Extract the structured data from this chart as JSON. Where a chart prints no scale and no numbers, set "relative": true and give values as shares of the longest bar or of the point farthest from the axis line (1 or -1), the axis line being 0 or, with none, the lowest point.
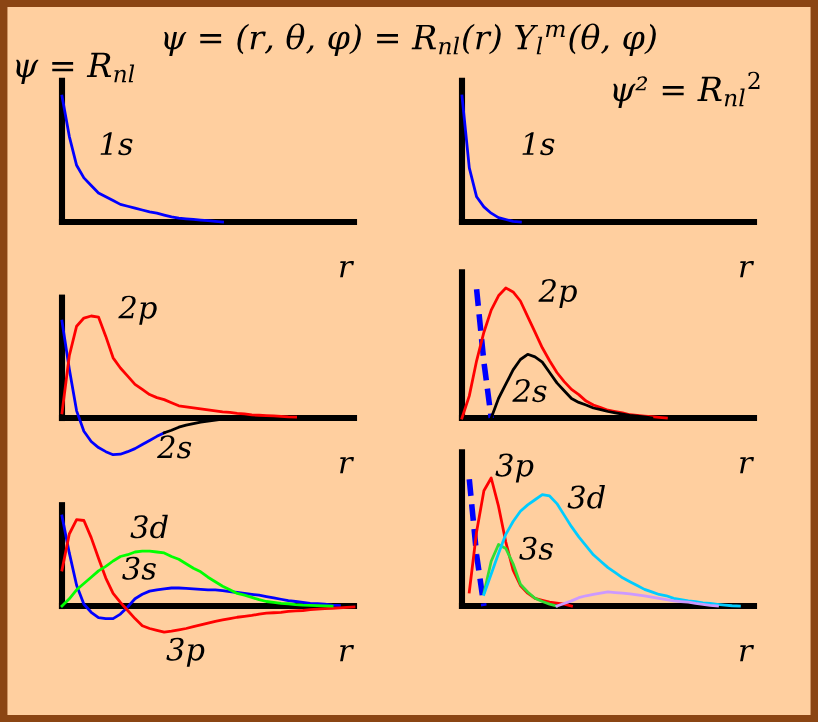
{
  "chart_data": [
    {
      "type": "line",
      "relative": true,
      "title": "ψ = (r, θ, φ) = R$_{nl}$(r) Y$_{l}$$^{m}$(θ, φ)",
      "ylabel": "ψ = R$_{nl}$",
      "xlabel": "r",
      "tick_labels": false,
      "categories": [
        null,
        null,
        null,
        null,
        null,
        null,
        null,
        null,
        null,
        null,
        null,
        null,
        null,
        null,
        null,
        null,
        null,
        null,
        null,
        null,
        null,
        null,
        null,
        null,
        null,
        null,
        null,
        null,
        null,
        null,
        null,
        null,
        null,
        null,
        null,
        null,
        null,
        null,
        null,
        null,
        null
      ],
      "series": [
        {
          "color": "#0000ff",
          "values": [
            1.0,
            0.68,
            0.45,
            0.35,
            0.29,
            0.23,
            0.2,
            0.17,
            0.14,
            0.125,
            0.11,
            0.095,
            0.08,
            0.07,
            0.055,
            0.04,
            0.03,
            0.025,
            0.02,
            0.015,
            0.01,
            0.005,
            0,
            null,
            null,
            null,
            null,
            null,
            null,
            null,
            null,
            null,
            null,
            null,
            null,
            null,
            null,
            null,
            null,
            null,
            null
          ]
        }
      ],
      "annotations": [
        "1s"
      ]
    },
    {
      "type": "line",
      "relative": true,
      "ylabel": "ψ² = R$_{nl}$$^{2}$",
      "xlabel": "r",
      "tick_labels": false,
      "categories": [
        null,
        null,
        null,
        null,
        null,
        null,
        null,
        null,
        null,
        null,
        null,
        null,
        null,
        null,
        null,
        null,
        null,
        null,
        null,
        null,
        null,
        null,
        null,
        null,
        null,
        null,
        null,
        null,
        null,
        null,
        null,
        null,
        null,
        null,
        null,
        null,
        null,
        null,
        null,
        null,
        null
      ],
      "series": [
        {
          "color": "#0000ff",
          "values": [
            1.0,
            0.43,
            0.2,
            0.12,
            0.07,
            0.035,
            0.02,
            0.005,
            0,
            null,
            null,
            null,
            null,
            null,
            null,
            null,
            null,
            null,
            null,
            null,
            null,
            null,
            null,
            null,
            null,
            null,
            null,
            null,
            null,
            null,
            null,
            null,
            null,
            null,
            null,
            null,
            null,
            null,
            null,
            null,
            null
          ]
        }
      ],
      "annotations": [
        "1s"
      ]
    },
    {
      "type": "line",
      "relative": true,
      "xlabel": "r",
      "tick_labels": false,
      "categories": [
        null,
        null,
        null,
        null,
        null,
        null,
        null,
        null,
        null,
        null,
        null,
        null,
        null,
        null,
        null,
        null,
        null,
        null,
        null,
        null,
        null,
        null,
        null,
        null,
        null,
        null,
        null,
        null,
        null,
        null,
        null,
        null,
        null,
        null,
        null,
        null,
        null,
        null,
        null,
        null,
        null
      ],
      "series": [
        {
          "color": "#0000ff",
          "values": [
            0.95,
            0.48,
            0.07,
            -0.13,
            -0.23,
            -0.29,
            -0.33,
            -0.36,
            -0.355,
            -0.33,
            -0.3,
            -0.26,
            -0.22,
            -0.18,
            -0.145,
            null,
            null,
            null,
            null,
            null,
            null,
            null,
            null,
            null,
            null,
            null,
            null,
            null,
            null,
            null,
            null,
            null,
            null,
            null,
            null,
            null,
            null,
            null,
            null,
            null,
            null
          ]
        },
        {
          "color": "#000000",
          "values": [
            null,
            null,
            null,
            null,
            null,
            null,
            null,
            null,
            null,
            null,
            null,
            null,
            null,
            null,
            -0.145,
            -0.12,
            -0.09,
            -0.07,
            -0.055,
            -0.04,
            -0.03,
            -0.02,
            -0.01,
            -0.005,
            -0.003,
            0,
            0,
            null,
            null,
            null,
            null,
            null,
            null,
            null,
            null,
            null,
            null,
            null,
            null,
            null,
            null
          ]
        },
        {
          "color": "#ff0000",
          "values": [
            0.05,
            0.61,
            0.9,
            0.98,
            1.0,
            0.99,
            0.8,
            0.59,
            0.49,
            0.41,
            0.33,
            0.28,
            0.23,
            0.2,
            0.18,
            0.15,
            0.12,
            0.11,
            0.1,
            0.09,
            0.08,
            0.07,
            0.06,
            0.055,
            0.045,
            0.04,
            0.03,
            0.027,
            0.023,
            0.02,
            0.016,
            0.012,
            0.01,
            null,
            null,
            null,
            null,
            null,
            null,
            null,
            null
          ]
        }
      ],
      "annotations": [
        "2p",
        "2s"
      ]
    },
    {
      "type": "line",
      "relative": true,
      "xlabel": "r",
      "tick_labels": false,
      "categories": [
        null,
        null,
        null,
        null,
        null,
        null,
        null,
        null,
        null,
        null,
        null,
        null,
        null,
        null,
        null,
        null,
        null,
        null,
        null,
        null,
        null,
        null,
        null,
        null,
        null,
        null,
        null,
        null,
        null,
        null,
        null,
        null,
        null,
        null,
        null,
        null,
        null,
        null,
        null,
        null,
        null
      ],
      "series": [
        {
          "color": "#0000ff",
          "line_style": "dashed",
          "values": [
            null,
            null,
            0.99,
            0.43,
            0,
            null,
            null,
            null,
            null,
            null,
            null,
            null,
            null,
            null,
            null,
            null,
            null,
            null,
            null,
            null,
            null,
            null,
            null,
            null,
            null,
            null,
            null,
            null,
            null,
            null,
            null,
            null,
            null,
            null,
            null,
            null,
            null,
            null,
            null,
            null,
            null
          ]
        },
        {
          "color": "#ff0000",
          "values": [
            0,
            0.17,
            0.44,
            0.66,
            0.83,
            0.94,
            1.0,
            0.97,
            0.9,
            0.78,
            0.66,
            0.54,
            0.44,
            0.35,
            0.28,
            0.22,
            0.18,
            0.13,
            0.1,
            0.08,
            0.06,
            0.05,
            0.04,
            0.025,
            0.02,
            0.015,
            0.01,
            0.005,
            0,
            null,
            null,
            null,
            null,
            null,
            null,
            null,
            null,
            null,
            null,
            null,
            null
          ]
        },
        {
          "color": "#000000",
          "values": [
            null,
            null,
            null,
            null,
            0,
            0.15,
            0.26,
            0.37,
            0.45,
            0.49,
            0.47,
            0.43,
            0.35,
            0.27,
            0.21,
            0.15,
            0.12,
            0.1,
            0.077,
            0.065,
            0.05,
            0.04,
            0.03,
            0.02,
            0.015,
            0.008,
            0,
            null,
            null,
            null,
            null,
            null,
            null,
            null,
            null,
            null,
            null,
            null,
            null,
            null,
            null
          ]
        }
      ],
      "annotations": [
        "2p",
        "2s"
      ]
    },
    {
      "type": "line",
      "relative": true,
      "xlabel": "r",
      "tick_labels": false,
      "categories": [
        null,
        null,
        null,
        null,
        null,
        null,
        null,
        null,
        null,
        null,
        null,
        null,
        null,
        null,
        null,
        null,
        null,
        null,
        null,
        null,
        null,
        null,
        null,
        null,
        null,
        null,
        null,
        null,
        null,
        null,
        null,
        null,
        null,
        null,
        null,
        null,
        null,
        null,
        null,
        null,
        null
      ],
      "series": [
        {
          "color": "#0000ff",
          "values": [
            1.0,
            0.59,
            0.23,
            0.02,
            -0.07,
            -0.13,
            -0.14,
            -0.14,
            -0.09,
            -0.01,
            0.08,
            0.13,
            0.165,
            0.18,
            0.19,
            0.2,
            0.2,
            0.195,
            0.19,
            0.185,
            0.18,
            0.18,
            0.17,
            0.16,
            0.15,
            0.14,
            0.13,
            0.12,
            0.105,
            0.09,
            0.075,
            0.06,
            0.05,
            0.04,
            0.03,
            0.025,
            0.02,
            0.01,
            0.005,
            null,
            null
          ]
        },
        {
          "color": "#ff0000",
          "values": [
            0.4,
            0.8,
            0.96,
            0.95,
            0.76,
            0.53,
            0.31,
            0.14,
            0.04,
            -0.05,
            -0.14,
            -0.22,
            -0.25,
            -0.27,
            -0.29,
            -0.28,
            -0.265,
            -0.25,
            -0.23,
            -0.21,
            -0.19,
            -0.17,
            -0.155,
            -0.14,
            -0.125,
            -0.115,
            -0.105,
            -0.09,
            -0.08,
            -0.075,
            -0.07,
            -0.06,
            -0.055,
            -0.05,
            -0.04,
            -0.035,
            -0.03,
            -0.025,
            -0.02,
            -0.015,
            -0.01
          ]
        },
        {
          "color": "#00ff00",
          "values": [
            0,
            0.08,
            0.18,
            0.25,
            0.32,
            0.39,
            0.44,
            0.5,
            0.55,
            0.57,
            0.6,
            0.61,
            0.61,
            0.6,
            0.59,
            0.55,
            0.52,
            0.47,
            0.42,
            0.38,
            0.32,
            0.27,
            0.22,
            0.18,
            0.14,
            0.12,
            0.095,
            0.07,
            0.05,
            0.04,
            0.03,
            0.025,
            0.015,
            0.01,
            0.007,
            0.005,
            0.002,
            0,
            null,
            null,
            null
          ]
        }
      ],
      "annotations": [
        "3d",
        "3s",
        "3p"
      ]
    },
    {
      "type": "line",
      "relative": true,
      "xlabel": "r",
      "tick_labels": false,
      "categories": [
        null,
        null,
        null,
        null,
        null,
        null,
        null,
        null,
        null,
        null,
        null,
        null,
        null,
        null,
        null,
        null,
        null,
        null,
        null,
        null,
        null,
        null,
        null,
        null,
        null,
        null,
        null,
        null,
        null,
        null,
        null,
        null,
        null,
        null,
        null,
        null,
        null,
        null,
        null,
        null,
        null
      ],
      "series": [
        {
          "color": "#0000ff",
          "line_style": "dashed",
          "values": [
            null,
            0.99,
            0.4,
            0,
            null,
            null,
            null,
            null,
            null,
            null,
            null,
            null,
            null,
            null,
            null,
            null,
            null,
            null,
            null,
            null,
            null,
            null,
            null,
            null,
            null,
            null,
            null,
            null,
            null,
            null,
            null,
            null,
            null,
            null,
            null,
            null,
            null,
            null,
            null,
            null,
            null
          ]
        },
        {
          "color": "#ff0000",
          "values": [
            null,
            0.11,
            0.58,
            0.9,
            1.0,
            0.78,
            0.5,
            0.28,
            0.16,
            0.1,
            0.06,
            0.045,
            0.03,
            0.022,
            0.015,
            0,
            null,
            null,
            null,
            null,
            null,
            null,
            null,
            null,
            null,
            null,
            null,
            null,
            null,
            null,
            null,
            null,
            null,
            null,
            null,
            null,
            null,
            null,
            null,
            null,
            null
          ]
        },
        {
          "color": "#33dd33",
          "values": [
            null,
            null,
            null,
            0.1,
            0.35,
            0.48,
            0.45,
            0.33,
            0.17,
            0.11,
            0.06,
            0.035,
            0.015,
            0,
            null,
            null,
            null,
            null,
            null,
            null,
            null,
            null,
            null,
            null,
            null,
            null,
            null,
            null,
            null,
            null,
            null,
            null,
            null,
            null,
            null,
            null,
            null,
            null,
            null,
            null,
            null
          ]
        },
        {
          "color": "#00ccff",
          "values": [
            null,
            null,
            null,
            0.09,
            0.25,
            0.41,
            0.56,
            0.66,
            0.74,
            0.79,
            0.83,
            0.87,
            0.86,
            0.8,
            0.71,
            0.62,
            0.54,
            0.47,
            0.4,
            0.35,
            0.3,
            0.26,
            0.22,
            0.19,
            0.16,
            0.13,
            0.11,
            0.09,
            0.08,
            0.06,
            0.05,
            0.04,
            0.035,
            0.025,
            0.02,
            0.013,
            0.007,
            0.002,
            0,
            null,
            null
          ]
        },
        {
          "color": "#cc99ff",
          "values": [
            null,
            null,
            null,
            null,
            null,
            null,
            null,
            null,
            null,
            null,
            null,
            null,
            null,
            0,
            0.02,
            0.04,
            0.065,
            0.08,
            0.09,
            0.1,
            0.11,
            0.105,
            0.1,
            0.095,
            0.087,
            0.08,
            0.07,
            0.06,
            0.05,
            0.04,
            0.035,
            0.03,
            0.02,
            0.013,
            0.005,
            0,
            null,
            null,
            null,
            null,
            null
          ]
        }
      ],
      "annotations": [
        "3p",
        "3d",
        "3s"
      ]
    }
  ]
}
